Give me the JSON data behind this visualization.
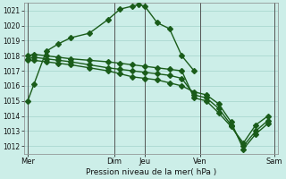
{
  "background_color": "#cceee8",
  "grid_color": "#aad8d0",
  "line_color": "#1a5c1a",
  "line_width": 1.0,
  "marker": "D",
  "marker_size": 3,
  "title": "Pression niveau de la mer( hPa )",
  "ylim": [
    1011.5,
    1021.5
  ],
  "yticks": [
    1012,
    1013,
    1014,
    1015,
    1016,
    1017,
    1018,
    1019,
    1020,
    1021
  ],
  "xlim": [
    -0.3,
    20.3
  ],
  "xtick_labels": [
    "Mer",
    "Dim",
    "Jeu",
    "Ven",
    "Sam"
  ],
  "xtick_positions": [
    0,
    7,
    9.5,
    14,
    20
  ],
  "vline_positions": [
    0,
    7,
    9.5,
    14,
    20
  ],
  "vline_color": "#555555",
  "series": [
    {
      "x": [
        0,
        0.5,
        1.5,
        2.5,
        3.5,
        5.0,
        6.5,
        7.5,
        8.5,
        9.0,
        9.5,
        10.5,
        11.5,
        12.5,
        13.5
      ],
      "y": [
        1015.0,
        1016.1,
        1018.3,
        1018.8,
        1019.2,
        1019.5,
        1020.4,
        1021.1,
        1021.3,
        1021.4,
        1021.3,
        1020.2,
        1019.8,
        1018.0,
        1017.0
      ]
    },
    {
      "x": [
        0,
        0.5,
        1.5,
        2.5,
        3.5,
        5.0,
        6.5,
        7.5,
        8.5,
        9.5,
        10.5,
        11.5,
        12.5,
        13.5,
        14.5,
        15.5,
        16.5,
        17.5,
        18.5,
        19.5
      ],
      "y": [
        1018.0,
        1018.1,
        1018.0,
        1017.9,
        1017.8,
        1017.7,
        1017.6,
        1017.5,
        1017.4,
        1017.3,
        1017.2,
        1017.1,
        1017.0,
        1015.2,
        1015.0,
        1014.2,
        1013.3,
        1012.2,
        1013.4,
        1014.0
      ]
    },
    {
      "x": [
        0,
        0.5,
        1.5,
        2.5,
        3.5,
        5.0,
        6.5,
        7.5,
        8.5,
        9.5,
        10.5,
        11.5,
        12.5,
        13.5,
        14.5,
        15.5,
        16.5,
        17.5,
        18.5,
        19.5
      ],
      "y": [
        1017.8,
        1017.9,
        1017.8,
        1017.7,
        1017.6,
        1017.4,
        1017.2,
        1017.1,
        1017.0,
        1016.9,
        1016.8,
        1016.7,
        1016.5,
        1015.4,
        1015.2,
        1014.5,
        1013.4,
        1012.0,
        1013.0,
        1013.7
      ]
    },
    {
      "x": [
        0,
        0.5,
        1.5,
        2.5,
        3.5,
        5.0,
        6.5,
        7.5,
        8.5,
        9.5,
        10.5,
        11.5,
        12.5,
        13.5,
        14.5,
        15.5,
        16.5,
        17.5,
        18.5,
        19.5
      ],
      "y": [
        1017.7,
        1017.7,
        1017.6,
        1017.5,
        1017.4,
        1017.2,
        1017.0,
        1016.8,
        1016.6,
        1016.5,
        1016.4,
        1016.2,
        1016.0,
        1015.6,
        1015.4,
        1014.8,
        1013.6,
        1011.8,
        1012.8,
        1013.5
      ]
    }
  ]
}
